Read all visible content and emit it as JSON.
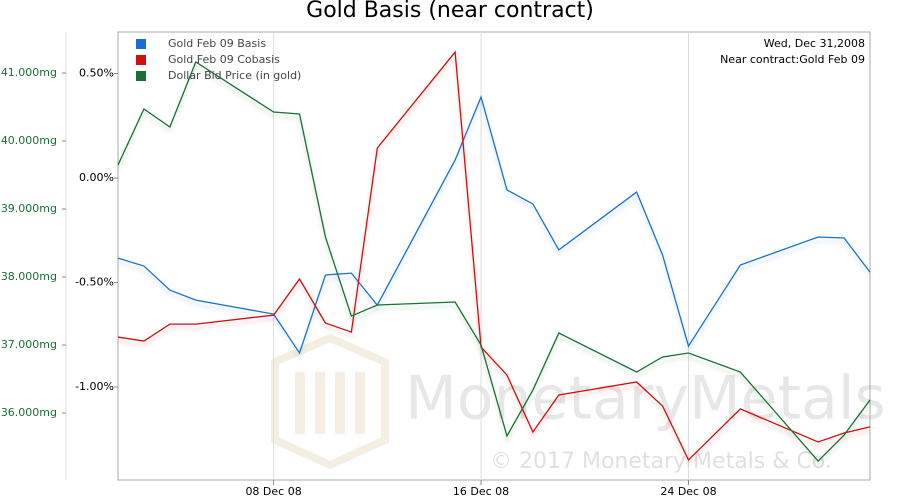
{
  "chart_data": {
    "type": "line",
    "title": "Gold Basis (near contract)",
    "date_label": "Wed, Dec 31,2008",
    "contract_label": "Near contract:Gold Feb 09",
    "watermark": "MonetaryMetals",
    "copyright": "© 2017 Monetary Metals & Co.",
    "x": [
      "2008-12-02",
      "2008-12-03",
      "2008-12-04",
      "2008-12-05",
      "2008-12-08",
      "2008-12-09",
      "2008-12-10",
      "2008-12-11",
      "2008-12-12",
      "2008-12-15",
      "2008-12-16",
      "2008-12-17",
      "2008-12-18",
      "2008-12-19",
      "2008-12-22",
      "2008-12-23",
      "2008-12-24",
      "2008-12-26",
      "2008-12-29",
      "2008-12-30",
      "2008-12-31"
    ],
    "xlim": [
      "2008-12-02",
      "2008-12-31"
    ],
    "xticks": [
      {
        "value": "2008-12-08",
        "label": "08 Dec 08"
      },
      {
        "value": "2008-12-16",
        "label": "16 Dec 08"
      },
      {
        "value": "2008-12-24",
        "label": "24 Dec 08"
      }
    ],
    "ylim": [
      -1.445,
      0.699
    ],
    "yticks": [
      {
        "value": 0.5,
        "label": "0.50%"
      },
      {
        "value": 0,
        "label": "0.00%"
      },
      {
        "value": -0.5,
        "label": "-0.50%"
      },
      {
        "value": -1,
        "label": "-1.00%"
      }
    ],
    "y2lim": [
      35.015,
      41.603
    ],
    "y2ticks": [
      {
        "value": 41,
        "label": "41.000mg"
      },
      {
        "value": 40,
        "label": "40.000mg"
      },
      {
        "value": 39,
        "label": "39.000mg"
      },
      {
        "value": 38,
        "label": "38.000mg"
      },
      {
        "value": 37,
        "label": "37.000mg"
      },
      {
        "value": 36,
        "label": "36.000mg"
      }
    ],
    "grid": true,
    "series": [
      {
        "name": "Gold Feb 09 Basis",
        "color": "#1a6fd0",
        "values": [
          -0.383,
          -0.421,
          -0.536,
          -0.584,
          -0.651,
          -0.837,
          -0.464,
          -0.455,
          -0.608,
          0.086,
          0.388,
          -0.057,
          -0.124,
          -0.344,
          -0.067,
          -0.368,
          -0.804,
          -0.416,
          -0.282,
          -0.287,
          -0.45
        ]
      },
      {
        "name": "Gold Feb 09 Cobasis",
        "color": "#d01010",
        "values": [
          -0.761,
          -0.78,
          -0.699,
          -0.699,
          -0.656,
          -0.483,
          -0.694,
          -0.737,
          0.144,
          0.603,
          -0.809,
          -0.943,
          -1.215,
          -1.038,
          -0.976,
          -1.091,
          -1.349,
          -1.105,
          -1.263,
          -1.22,
          -1.191
        ]
      },
      {
        "name": "Dollar Bid Price (in gold)",
        "color": "#1b6e35",
        "axis": "y2",
        "values": [
          39.647,
          40.471,
          40.206,
          41.162,
          40.426,
          40.397,
          38.588,
          37.426,
          37.588,
          37.632,
          37.0,
          35.662,
          36.338,
          37.176,
          36.603,
          36.824,
          36.882,
          36.603,
          35.294,
          35.676,
          36.191
        ]
      }
    ]
  }
}
